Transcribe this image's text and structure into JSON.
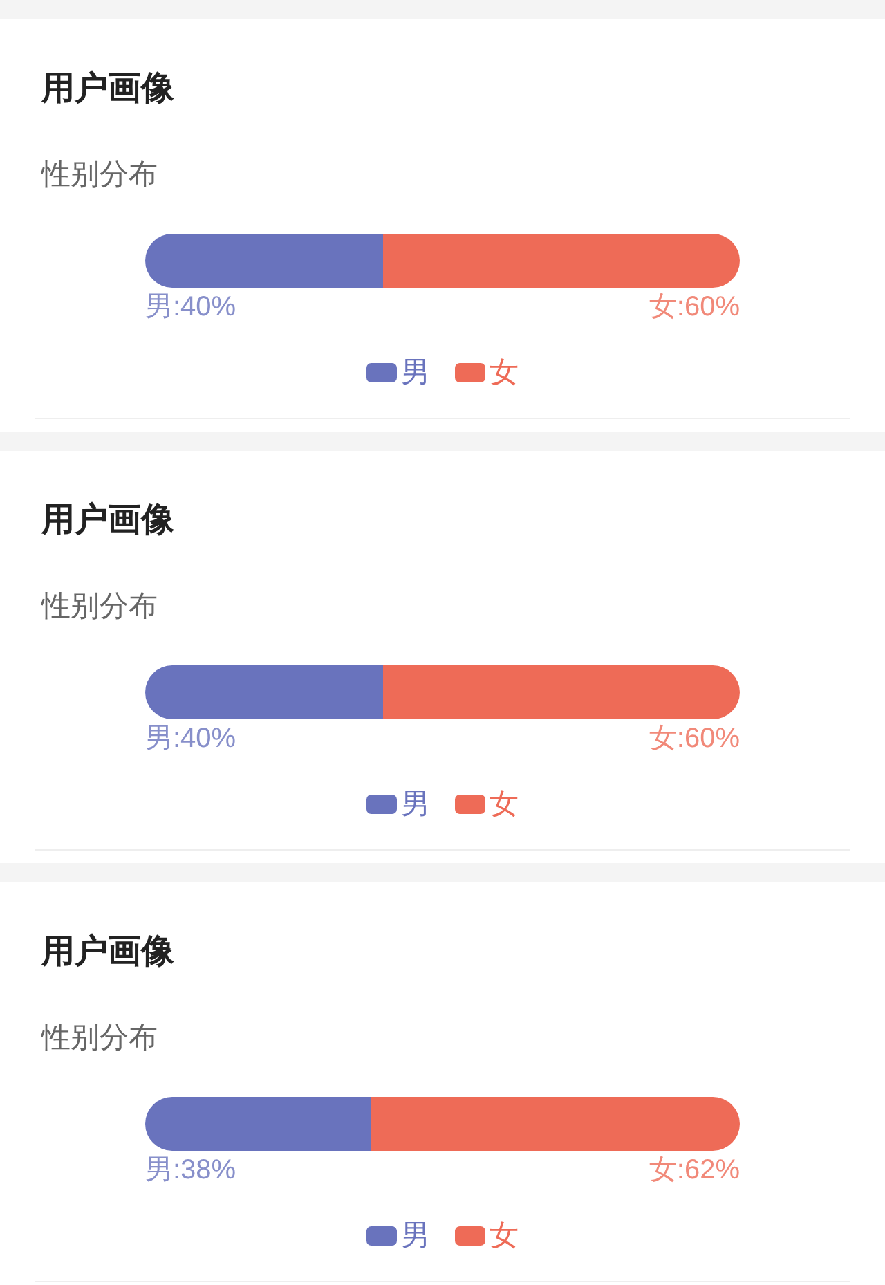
{
  "chart_data": [
    {
      "type": "bar",
      "orientation": "horizontal",
      "stacked": true,
      "title": "用户画像",
      "subtitle": "性别分布",
      "categories": [
        null
      ],
      "xlim": [
        0,
        100
      ],
      "tick_labels": false,
      "legend": "bottom",
      "series": [
        {
          "name": "男",
          "color": "#6973bd",
          "values": [
            40
          ],
          "value_labels": [
            "男:40%"
          ]
        },
        {
          "name": "女",
          "color": "#ee6b57",
          "values": [
            60
          ],
          "value_labels": [
            "女:60%"
          ]
        }
      ]
    },
    {
      "type": "bar",
      "orientation": "horizontal",
      "stacked": true,
      "title": "用户画像",
      "subtitle": "性别分布",
      "categories": [
        null
      ],
      "xlim": [
        0,
        100
      ],
      "tick_labels": false,
      "legend": "bottom",
      "series": [
        {
          "name": "男",
          "color": "#6973bd",
          "values": [
            40
          ],
          "value_labels": [
            "男:40%"
          ]
        },
        {
          "name": "女",
          "color": "#ee6b57",
          "values": [
            60
          ],
          "value_labels": [
            "女:60%"
          ]
        }
      ]
    },
    {
      "type": "bar",
      "orientation": "horizontal",
      "stacked": true,
      "title": "用户画像",
      "subtitle": "性别分布",
      "categories": [
        null
      ],
      "xlim": [
        0,
        100
      ],
      "tick_labels": false,
      "legend": "bottom",
      "series": [
        {
          "name": "男",
          "color": "#6973bd",
          "values": [
            38
          ],
          "value_labels": [
            "男:38%"
          ]
        },
        {
          "name": "女",
          "color": "#ee6b57",
          "values": [
            62
          ],
          "value_labels": [
            "女:62%"
          ]
        }
      ]
    }
  ]
}
